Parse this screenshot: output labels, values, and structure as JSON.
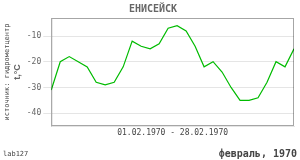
{
  "chart_data": {
    "type": "line",
    "title": "ЕНИСЕЙСК",
    "y_label": "t,°C",
    "x": [
      1,
      2,
      3,
      4,
      5,
      6,
      7,
      8,
      9,
      10,
      11,
      12,
      13,
      14,
      15,
      16,
      17,
      18,
      19,
      20,
      21,
      22,
      23,
      24,
      25,
      26,
      27,
      28
    ],
    "values": [
      -31,
      -20,
      -18,
      -20,
      -22,
      -28,
      -29,
      -28,
      -22,
      -12,
      -14,
      -15,
      -13,
      -7,
      -6,
      -8,
      -14,
      -22,
      -20,
      -24,
      -30,
      -35,
      -35,
      -34,
      -28,
      -20,
      -22,
      -15
    ],
    "color": "#00bb00",
    "xlim": [
      1,
      28
    ],
    "ylim": [
      -45,
      -3
    ],
    "yticks": [
      -40,
      -30,
      -20,
      -10
    ],
    "grid": true,
    "tick_labels": "y",
    "annotations": [
      "01.02.1970 - 28.02.1970",
      "февраль, 1970",
      "lab127",
      "источник: гидрометцентр"
    ]
  }
}
